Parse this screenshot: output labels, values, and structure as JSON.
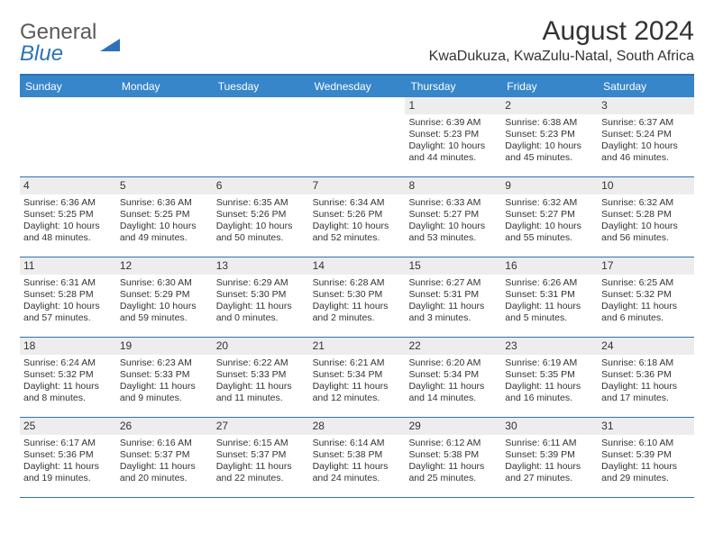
{
  "logo": {
    "general": "General",
    "blue": "Blue"
  },
  "header": {
    "month_title": "August 2024",
    "location": "KwaDukuza, KwaZulu-Natal, South Africa"
  },
  "colors": {
    "header_bg": "#3686c9",
    "header_text": "#ffffff",
    "rule": "#2d72b8",
    "daynum_bg": "#ededed",
    "text": "#333333",
    "logo_gray": "#5a5a5a",
    "logo_blue": "#2d72b8"
  },
  "day_labels": [
    "Sunday",
    "Monday",
    "Tuesday",
    "Wednesday",
    "Thursday",
    "Friday",
    "Saturday"
  ],
  "weeks": [
    [
      {
        "empty": true
      },
      {
        "empty": true
      },
      {
        "empty": true
      },
      {
        "empty": true
      },
      {
        "n": "1",
        "sr": "Sunrise: 6:39 AM",
        "ss": "Sunset: 5:23 PM",
        "d1": "Daylight: 10 hours",
        "d2": "and 44 minutes."
      },
      {
        "n": "2",
        "sr": "Sunrise: 6:38 AM",
        "ss": "Sunset: 5:23 PM",
        "d1": "Daylight: 10 hours",
        "d2": "and 45 minutes."
      },
      {
        "n": "3",
        "sr": "Sunrise: 6:37 AM",
        "ss": "Sunset: 5:24 PM",
        "d1": "Daylight: 10 hours",
        "d2": "and 46 minutes."
      }
    ],
    [
      {
        "n": "4",
        "sr": "Sunrise: 6:36 AM",
        "ss": "Sunset: 5:25 PM",
        "d1": "Daylight: 10 hours",
        "d2": "and 48 minutes."
      },
      {
        "n": "5",
        "sr": "Sunrise: 6:36 AM",
        "ss": "Sunset: 5:25 PM",
        "d1": "Daylight: 10 hours",
        "d2": "and 49 minutes."
      },
      {
        "n": "6",
        "sr": "Sunrise: 6:35 AM",
        "ss": "Sunset: 5:26 PM",
        "d1": "Daylight: 10 hours",
        "d2": "and 50 minutes."
      },
      {
        "n": "7",
        "sr": "Sunrise: 6:34 AM",
        "ss": "Sunset: 5:26 PM",
        "d1": "Daylight: 10 hours",
        "d2": "and 52 minutes."
      },
      {
        "n": "8",
        "sr": "Sunrise: 6:33 AM",
        "ss": "Sunset: 5:27 PM",
        "d1": "Daylight: 10 hours",
        "d2": "and 53 minutes."
      },
      {
        "n": "9",
        "sr": "Sunrise: 6:32 AM",
        "ss": "Sunset: 5:27 PM",
        "d1": "Daylight: 10 hours",
        "d2": "and 55 minutes."
      },
      {
        "n": "10",
        "sr": "Sunrise: 6:32 AM",
        "ss": "Sunset: 5:28 PM",
        "d1": "Daylight: 10 hours",
        "d2": "and 56 minutes."
      }
    ],
    [
      {
        "n": "11",
        "sr": "Sunrise: 6:31 AM",
        "ss": "Sunset: 5:28 PM",
        "d1": "Daylight: 10 hours",
        "d2": "and 57 minutes."
      },
      {
        "n": "12",
        "sr": "Sunrise: 6:30 AM",
        "ss": "Sunset: 5:29 PM",
        "d1": "Daylight: 10 hours",
        "d2": "and 59 minutes."
      },
      {
        "n": "13",
        "sr": "Sunrise: 6:29 AM",
        "ss": "Sunset: 5:30 PM",
        "d1": "Daylight: 11 hours",
        "d2": "and 0 minutes."
      },
      {
        "n": "14",
        "sr": "Sunrise: 6:28 AM",
        "ss": "Sunset: 5:30 PM",
        "d1": "Daylight: 11 hours",
        "d2": "and 2 minutes."
      },
      {
        "n": "15",
        "sr": "Sunrise: 6:27 AM",
        "ss": "Sunset: 5:31 PM",
        "d1": "Daylight: 11 hours",
        "d2": "and 3 minutes."
      },
      {
        "n": "16",
        "sr": "Sunrise: 6:26 AM",
        "ss": "Sunset: 5:31 PM",
        "d1": "Daylight: 11 hours",
        "d2": "and 5 minutes."
      },
      {
        "n": "17",
        "sr": "Sunrise: 6:25 AM",
        "ss": "Sunset: 5:32 PM",
        "d1": "Daylight: 11 hours",
        "d2": "and 6 minutes."
      }
    ],
    [
      {
        "n": "18",
        "sr": "Sunrise: 6:24 AM",
        "ss": "Sunset: 5:32 PM",
        "d1": "Daylight: 11 hours",
        "d2": "and 8 minutes."
      },
      {
        "n": "19",
        "sr": "Sunrise: 6:23 AM",
        "ss": "Sunset: 5:33 PM",
        "d1": "Daylight: 11 hours",
        "d2": "and 9 minutes."
      },
      {
        "n": "20",
        "sr": "Sunrise: 6:22 AM",
        "ss": "Sunset: 5:33 PM",
        "d1": "Daylight: 11 hours",
        "d2": "and 11 minutes."
      },
      {
        "n": "21",
        "sr": "Sunrise: 6:21 AM",
        "ss": "Sunset: 5:34 PM",
        "d1": "Daylight: 11 hours",
        "d2": "and 12 minutes."
      },
      {
        "n": "22",
        "sr": "Sunrise: 6:20 AM",
        "ss": "Sunset: 5:34 PM",
        "d1": "Daylight: 11 hours",
        "d2": "and 14 minutes."
      },
      {
        "n": "23",
        "sr": "Sunrise: 6:19 AM",
        "ss": "Sunset: 5:35 PM",
        "d1": "Daylight: 11 hours",
        "d2": "and 16 minutes."
      },
      {
        "n": "24",
        "sr": "Sunrise: 6:18 AM",
        "ss": "Sunset: 5:36 PM",
        "d1": "Daylight: 11 hours",
        "d2": "and 17 minutes."
      }
    ],
    [
      {
        "n": "25",
        "sr": "Sunrise: 6:17 AM",
        "ss": "Sunset: 5:36 PM",
        "d1": "Daylight: 11 hours",
        "d2": "and 19 minutes."
      },
      {
        "n": "26",
        "sr": "Sunrise: 6:16 AM",
        "ss": "Sunset: 5:37 PM",
        "d1": "Daylight: 11 hours",
        "d2": "and 20 minutes."
      },
      {
        "n": "27",
        "sr": "Sunrise: 6:15 AM",
        "ss": "Sunset: 5:37 PM",
        "d1": "Daylight: 11 hours",
        "d2": "and 22 minutes."
      },
      {
        "n": "28",
        "sr": "Sunrise: 6:14 AM",
        "ss": "Sunset: 5:38 PM",
        "d1": "Daylight: 11 hours",
        "d2": "and 24 minutes."
      },
      {
        "n": "29",
        "sr": "Sunrise: 6:12 AM",
        "ss": "Sunset: 5:38 PM",
        "d1": "Daylight: 11 hours",
        "d2": "and 25 minutes."
      },
      {
        "n": "30",
        "sr": "Sunrise: 6:11 AM",
        "ss": "Sunset: 5:39 PM",
        "d1": "Daylight: 11 hours",
        "d2": "and 27 minutes."
      },
      {
        "n": "31",
        "sr": "Sunrise: 6:10 AM",
        "ss": "Sunset: 5:39 PM",
        "d1": "Daylight: 11 hours",
        "d2": "and 29 minutes."
      }
    ]
  ]
}
